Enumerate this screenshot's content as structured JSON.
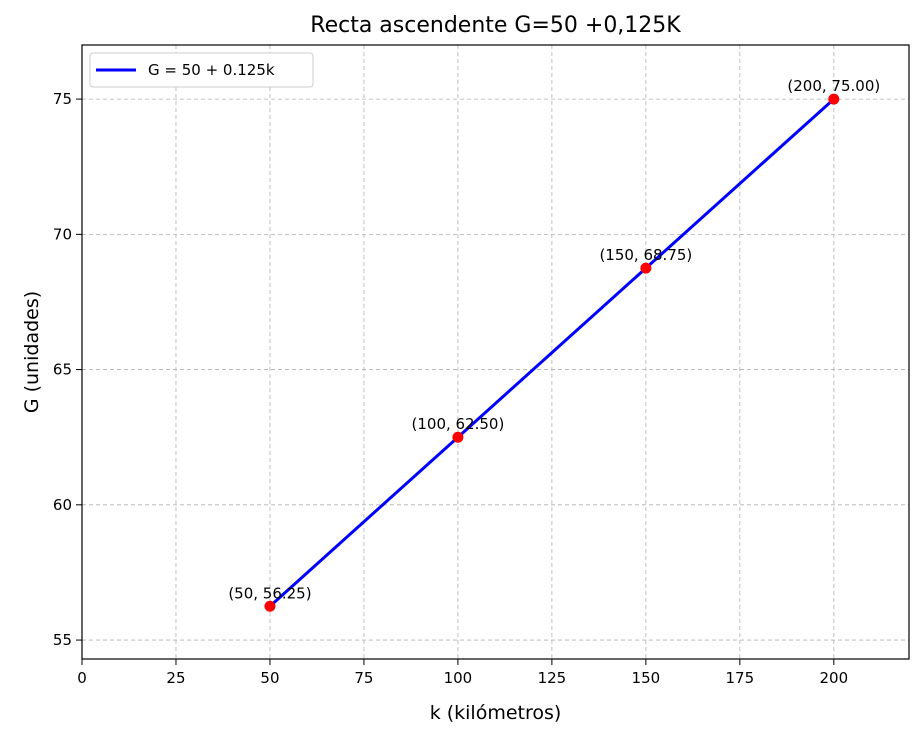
{
  "chart_data": {
    "type": "line",
    "title": "Recta ascendente G=50 +0,125K",
    "xlabel": "k (kilómetros)",
    "ylabel": "G (unidades)",
    "xlim": [
      0,
      220
    ],
    "ylim": [
      54.3,
      77.0
    ],
    "xticks": [
      0,
      25,
      50,
      75,
      100,
      125,
      150,
      175,
      200
    ],
    "yticks": [
      55,
      60,
      65,
      70,
      75
    ],
    "grid": true,
    "legend_position": "top-left",
    "series": [
      {
        "name": "G = 50 + 0.125k",
        "color": "#0000ff",
        "x": [
          50,
          100,
          150,
          200
        ],
        "y": [
          56.25,
          62.5,
          68.75,
          75.0
        ]
      }
    ],
    "points": {
      "color": "#ff0000",
      "x": [
        50,
        100,
        150,
        200
      ],
      "y": [
        56.25,
        62.5,
        68.75,
        75.0
      ],
      "labels": [
        "(50, 56.25)",
        "(100, 62.50)",
        "(150, 68.75)",
        "(200, 75.00)"
      ]
    }
  }
}
